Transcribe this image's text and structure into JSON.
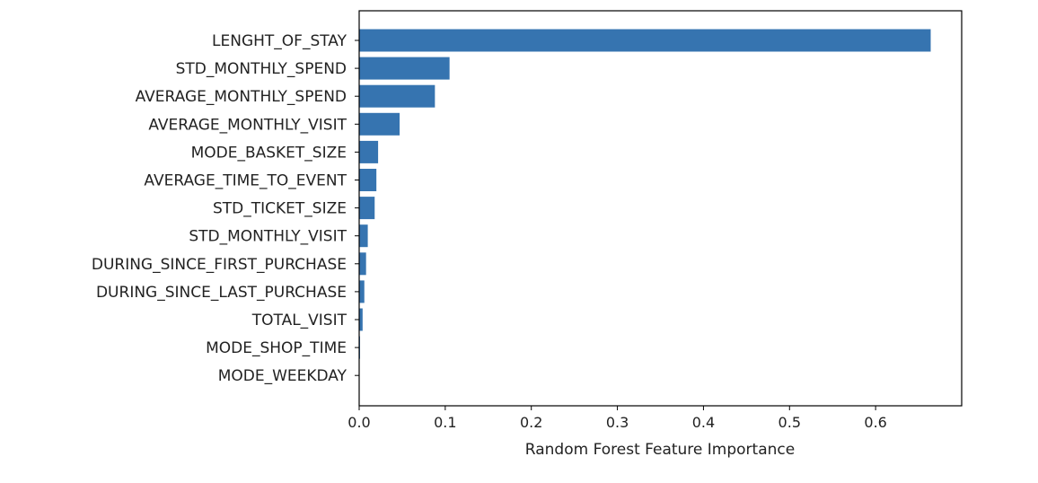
{
  "chart_data": {
    "type": "bar",
    "orientation": "horizontal",
    "title": "",
    "xlabel": "Random Forest Feature Importance",
    "ylabel": "",
    "categories": [
      "LENGHT_OF_STAY",
      "STD_MONTHLY_SPEND",
      "AVERAGE_MONTHLY_SPEND",
      "AVERAGE_MONTHLY_VISIT",
      "MODE_BASKET_SIZE",
      "AVERAGE_TIME_TO_EVENT",
      "STD_TICKET_SIZE",
      "STD_MONTHLY_VISIT",
      "DURING_SINCE_FIRST_PURCHASE",
      "DURING_SINCE_LAST_PURCHASE",
      "TOTAL_VISIT",
      "MODE_SHOP_TIME",
      "MODE_WEEKDAY"
    ],
    "values": [
      0.664,
      0.105,
      0.088,
      0.047,
      0.022,
      0.02,
      0.018,
      0.01,
      0.008,
      0.006,
      0.004,
      0.001,
      0.0005
    ],
    "xlim": [
      0,
      0.7
    ],
    "xticks": [
      "0.0",
      "0.1",
      "0.2",
      "0.3",
      "0.4",
      "0.5",
      "0.6"
    ],
    "grid": false,
    "bar_color": "#3674b0"
  }
}
